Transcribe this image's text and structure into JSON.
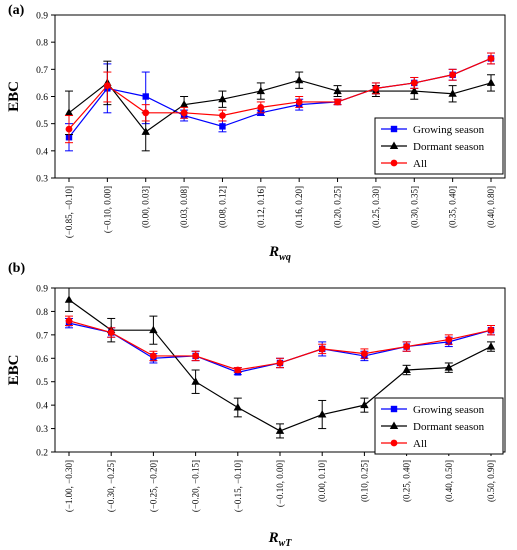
{
  "chart_data": [
    {
      "type": "line",
      "panel_label": "(a)",
      "ylabel": "EBC",
      "xlabel_main": "R",
      "xlabel_sub": "wq",
      "ylim": [
        0.3,
        0.9
      ],
      "yticks": [
        0.3,
        0.4,
        0.5,
        0.6,
        0.7,
        0.8,
        0.9
      ],
      "categories": [
        "(−0.85, −0.10]",
        "(−0.10, 0.00]",
        "(0.00, 0.03]",
        "(0.03, 0.08]",
        "(0.08, 0.12]",
        "(0.12, 0.16]",
        "(0.16, 0.20]",
        "(0.20, 0.25]",
        "(0.25, 0.30]",
        "(0.30, 0.35]",
        "(0.35, 0.40]",
        "(0.40, 0.80]"
      ],
      "legend_position": "bottom-right",
      "series": [
        {
          "name": "Growing season",
          "color": "#0000ff",
          "marker": "square",
          "values": [
            0.45,
            0.63,
            0.6,
            0.53,
            0.49,
            0.54,
            0.57,
            0.58,
            0.63,
            0.65,
            0.68,
            0.74
          ],
          "err_low": [
            0.4,
            0.54,
            0.5,
            0.51,
            0.47,
            0.53,
            0.55,
            0.57,
            0.61,
            0.63,
            0.66,
            0.72
          ],
          "err_high": [
            0.5,
            0.72,
            0.69,
            0.55,
            0.51,
            0.55,
            0.59,
            0.59,
            0.65,
            0.67,
            0.7,
            0.76
          ]
        },
        {
          "name": "Dormant season",
          "color": "#000000",
          "marker": "triangle",
          "values": [
            0.54,
            0.65,
            0.47,
            0.57,
            0.59,
            0.62,
            0.66,
            0.62,
            0.62,
            0.62,
            0.61,
            0.65
          ],
          "err_low": [
            0.46,
            0.57,
            0.4,
            0.54,
            0.56,
            0.59,
            0.63,
            0.6,
            0.6,
            0.59,
            0.58,
            0.62
          ],
          "err_high": [
            0.62,
            0.73,
            0.54,
            0.6,
            0.62,
            0.65,
            0.69,
            0.64,
            0.64,
            0.65,
            0.64,
            0.68
          ]
        },
        {
          "name": "All",
          "color": "#ff0000",
          "marker": "circle",
          "values": [
            0.48,
            0.64,
            0.54,
            0.54,
            0.53,
            0.56,
            0.58,
            0.58,
            0.63,
            0.65,
            0.68,
            0.74
          ],
          "err_low": [
            0.43,
            0.58,
            0.51,
            0.52,
            0.51,
            0.54,
            0.56,
            0.57,
            0.61,
            0.63,
            0.66,
            0.72
          ],
          "err_high": [
            0.53,
            0.69,
            0.57,
            0.56,
            0.55,
            0.58,
            0.6,
            0.59,
            0.65,
            0.67,
            0.7,
            0.76
          ]
        }
      ]
    },
    {
      "type": "line",
      "panel_label": "(b)",
      "ylabel": "EBC",
      "xlabel_main": "R",
      "xlabel_sub": "wT",
      "ylim": [
        0.2,
        0.9
      ],
      "yticks": [
        0.2,
        0.3,
        0.4,
        0.5,
        0.6,
        0.7,
        0.8,
        0.9
      ],
      "categories": [
        "(−1.00, −0.30]",
        "(−0.30, −0.25]",
        "(−0.25, −0.20]",
        "(−0.20, −0.15]",
        "(−0.15, −0.10]",
        "(−0.10, 0.00]",
        "(0.00, 0.10]",
        "(0.10, 0.25]",
        "(0.25, 0.40]",
        "(0.40, 0.50]",
        "(0.50, 0.90]"
      ],
      "legend_position": "bottom-right",
      "series": [
        {
          "name": "Growing season",
          "color": "#0000ff",
          "marker": "square",
          "values": [
            0.75,
            0.71,
            0.6,
            0.61,
            0.54,
            0.58,
            0.64,
            0.61,
            0.65,
            0.67,
            0.72
          ],
          "err_low": [
            0.73,
            0.69,
            0.58,
            0.59,
            0.53,
            0.56,
            0.61,
            0.59,
            0.63,
            0.65,
            0.7
          ],
          "err_high": [
            0.77,
            0.73,
            0.62,
            0.63,
            0.56,
            0.6,
            0.67,
            0.63,
            0.67,
            0.69,
            0.74
          ]
        },
        {
          "name": "Dormant season",
          "color": "#000000",
          "marker": "triangle",
          "values": [
            0.85,
            0.72,
            0.72,
            0.5,
            0.39,
            0.29,
            0.36,
            0.4,
            0.55,
            0.56,
            0.65
          ],
          "err_low": [
            0.8,
            0.67,
            0.66,
            0.45,
            0.35,
            0.26,
            0.3,
            0.37,
            0.53,
            0.54,
            0.63
          ],
          "err_high": [
            0.9,
            0.77,
            0.78,
            0.55,
            0.43,
            0.32,
            0.42,
            0.43,
            0.57,
            0.58,
            0.67
          ]
        },
        {
          "name": "All",
          "color": "#ff0000",
          "marker": "circle",
          "values": [
            0.76,
            0.71,
            0.61,
            0.61,
            0.55,
            0.58,
            0.64,
            0.62,
            0.65,
            0.68,
            0.72
          ],
          "err_low": [
            0.74,
            0.69,
            0.59,
            0.59,
            0.54,
            0.56,
            0.62,
            0.6,
            0.63,
            0.66,
            0.7
          ],
          "err_high": [
            0.78,
            0.73,
            0.63,
            0.63,
            0.56,
            0.6,
            0.66,
            0.64,
            0.67,
            0.7,
            0.74
          ]
        }
      ]
    }
  ]
}
